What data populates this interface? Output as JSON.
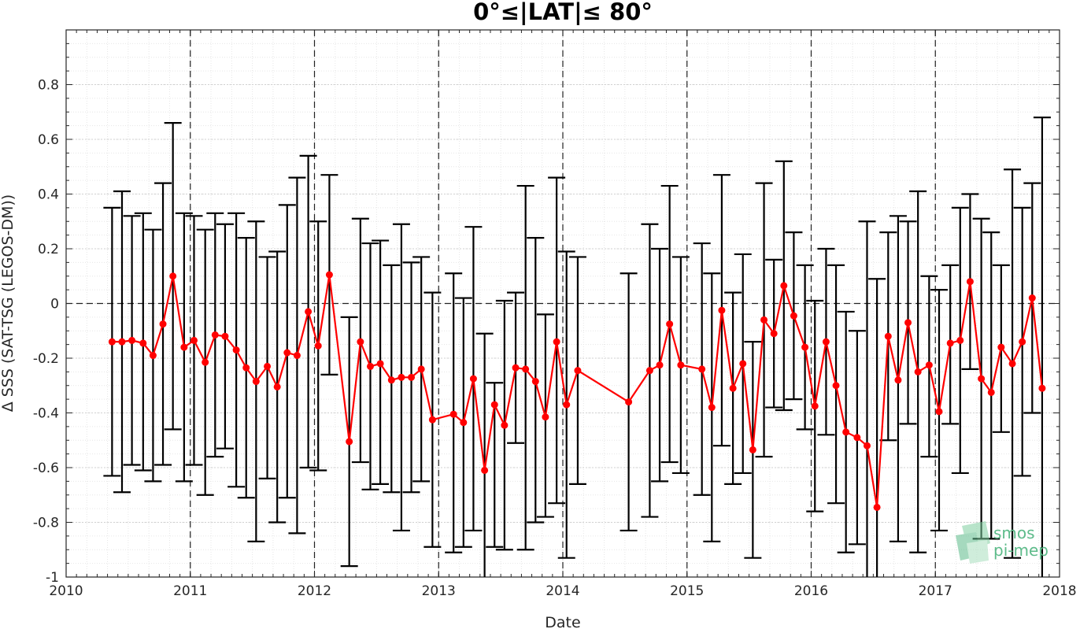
{
  "chart_data": {
    "type": "line",
    "title": "0°≤|LAT|≤ 80°",
    "xlabel": "Date",
    "ylabel": "Δ SSS (SAT-TSG (LEGOS-DM))",
    "xlim": [
      2010,
      2018
    ],
    "ylim": [
      -1,
      1
    ],
    "xticks": [
      2010,
      2011,
      2012,
      2013,
      2014,
      2015,
      2016,
      2017,
      2018
    ],
    "xtick_labels": [
      "2010",
      "2011",
      "2012",
      "2013",
      "2014",
      "2015",
      "2016",
      "2017",
      "2018"
    ],
    "yticks": [
      -1,
      -0.8,
      -0.6,
      -0.4,
      -0.2,
      0,
      0.2,
      0.4,
      0.6,
      0.8
    ],
    "ytick_labels": [
      "-1",
      "-0.8",
      "-0.6",
      "-0.4",
      "-0.2",
      "0",
      "0.2",
      "0.4",
      "0.6",
      "0.8"
    ],
    "grid": true,
    "minor_grid": true,
    "series_color": "#ff0000",
    "errorbar_color": "#000000",
    "reference_line_y": 0,
    "year_lines": [
      2011,
      2012,
      2013,
      2014,
      2015,
      2016,
      2017
    ],
    "series": [
      {
        "x": [
          2010.37,
          2010.45,
          2010.53,
          2010.62,
          2010.7,
          2010.78,
          2010.86,
          2010.95,
          2011.03,
          2011.12,
          2011.2,
          2011.28,
          2011.37,
          2011.45,
          2011.53,
          2011.62,
          2011.7,
          2011.78,
          2011.86,
          2011.95,
          2012.03,
          2012.12,
          2012.28,
          2012.37,
          2012.45,
          2012.53,
          2012.62,
          2012.7,
          2012.78,
          2012.86,
          2012.95,
          2013.12,
          2013.2,
          2013.28,
          2013.37,
          2013.45,
          2013.53,
          2013.62,
          2013.7,
          2013.78,
          2013.86,
          2013.95,
          2014.03,
          2014.12,
          2014.53,
          2014.7,
          2014.78,
          2014.86,
          2014.95,
          2015.12,
          2015.2,
          2015.28,
          2015.37,
          2015.45,
          2015.53,
          2015.62,
          2015.7,
          2015.78,
          2015.86,
          2015.95,
          2016.03,
          2016.12,
          2016.2,
          2016.28,
          2016.37,
          2016.45,
          2016.53,
          2016.62,
          2016.7,
          2016.78,
          2016.86,
          2016.95,
          2017.03,
          2017.12,
          2017.2,
          2017.28,
          2017.37,
          2017.45,
          2017.53,
          2017.62,
          2017.7,
          2017.78,
          2017.86
        ],
        "y": [
          -0.14,
          -0.14,
          -0.135,
          -0.145,
          -0.19,
          -0.075,
          0.1,
          -0.16,
          -0.135,
          -0.215,
          -0.115,
          -0.12,
          -0.17,
          -0.235,
          -0.285,
          -0.23,
          -0.305,
          -0.18,
          -0.19,
          -0.03,
          -0.155,
          0.105,
          -0.505,
          -0.14,
          -0.23,
          -0.22,
          -0.28,
          -0.27,
          -0.27,
          -0.24,
          -0.425,
          -0.405,
          -0.435,
          -0.275,
          -0.61,
          -0.37,
          -0.445,
          -0.235,
          -0.24,
          -0.285,
          -0.415,
          -0.14,
          -0.37,
          -0.245,
          -0.36,
          -0.245,
          -0.225,
          -0.075,
          -0.225,
          -0.24,
          -0.38,
          -0.025,
          -0.31,
          -0.22,
          -0.535,
          -0.06,
          -0.11,
          0.065,
          -0.045,
          -0.16,
          -0.375,
          -0.14,
          -0.3,
          -0.47,
          -0.49,
          -0.52,
          -0.745,
          -0.12,
          -0.28,
          -0.07,
          -0.25,
          -0.225,
          -0.395,
          -0.145,
          -0.135,
          0.08,
          -0.275,
          -0.325,
          -0.16,
          -0.22,
          -0.14,
          0.02,
          -0.31
        ],
        "err_upper": [
          0.35,
          0.41,
          0.32,
          0.33,
          0.27,
          0.44,
          0.66,
          0.33,
          0.32,
          0.27,
          0.33,
          0.29,
          0.33,
          0.24,
          0.3,
          0.17,
          0.19,
          0.36,
          0.46,
          0.54,
          0.3,
          0.47,
          -0.05,
          0.31,
          0.22,
          0.23,
          0.14,
          0.29,
          0.15,
          0.17,
          0.04,
          0.11,
          0.02,
          0.28,
          -0.11,
          -0.29,
          0.01,
          0.04,
          0.43,
          0.24,
          -0.04,
          0.46,
          0.19,
          0.17,
          0.11,
          0.29,
          0.2,
          0.43,
          0.17,
          0.22,
          0.11,
          0.47,
          0.04,
          0.18,
          -0.14,
          0.44,
          0.16,
          0.52,
          0.26,
          0.14,
          0.01,
          0.2,
          0.14,
          -0.03,
          -0.1,
          0.3,
          0.09,
          0.26,
          0.32,
          0.3,
          0.41,
          0.1,
          0.05,
          0.14,
          0.35,
          0.4,
          0.31,
          0.26,
          0.14,
          0.49,
          0.35,
          0.44,
          0.68
        ],
        "err_lower": [
          -0.63,
          -0.69,
          -0.59,
          -0.61,
          -0.65,
          -0.59,
          -0.46,
          -0.65,
          -0.59,
          -0.7,
          -0.56,
          -0.53,
          -0.67,
          -0.71,
          -0.87,
          -0.64,
          -0.8,
          -0.71,
          -0.84,
          -0.6,
          -0.61,
          -0.26,
          -0.96,
          -0.58,
          -0.68,
          -0.66,
          -0.69,
          -0.83,
          -0.69,
          -0.65,
          -0.89,
          -0.91,
          -0.89,
          -0.83,
          -1.0,
          -0.89,
          -0.9,
          -0.51,
          -0.9,
          -0.8,
          -0.78,
          -0.73,
          -0.93,
          -0.66,
          -0.83,
          -0.78,
          -0.65,
          -0.58,
          -0.62,
          -0.7,
          -0.87,
          -0.52,
          -0.66,
          -0.62,
          -0.93,
          -0.56,
          -0.38,
          -0.39,
          -0.35,
          -0.46,
          -0.76,
          -0.48,
          -0.73,
          -0.91,
          -0.88,
          -1.0,
          -1.0,
          -0.5,
          -0.87,
          -0.44,
          -0.91,
          -0.56,
          -0.83,
          -0.44,
          -0.62,
          -0.24,
          -0.86,
          -0.86,
          -0.47,
          -0.93,
          -0.63,
          -0.4,
          -1.0
        ]
      }
    ]
  },
  "logo": {
    "line1": "smos",
    "line2": "pi-mep",
    "color": "#5dbb8a"
  }
}
